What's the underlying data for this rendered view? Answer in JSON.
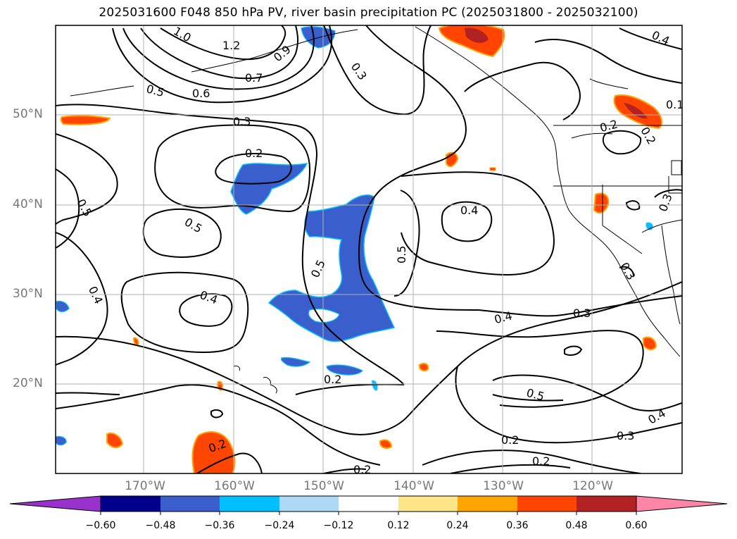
{
  "title": "2025031600 F048 850 hPa PV, river basin precipitation PC (2025031800 - 2025032100)",
  "latitude_labels": [
    "50°N",
    "40°N",
    "30°N",
    "20°N"
  ],
  "longitude_labels": [
    "170°W",
    "160°W",
    "150°W",
    "140°W",
    "130°W",
    "120°W"
  ],
  "contour_labels": [
    "1.0",
    "1.2",
    "0.9",
    "0.7",
    "0.6",
    "0.5",
    "0.3",
    "0.2",
    "0.5",
    "0.5",
    "0.4",
    "0.5",
    "0.5",
    "0.4",
    "0.4",
    "0.4",
    "0.3",
    "0.2",
    "0.5",
    "0.4",
    "0.3",
    "0.2",
    "0.2",
    "0.2",
    "0.2",
    "0.4",
    "0.1",
    "0.2",
    "0.2",
    "0.3"
  ],
  "colorbar": {
    "tick_labels": [
      "−0.60",
      "−0.48",
      "−0.36",
      "−0.24",
      "−0.12",
      "0.12",
      "0.24",
      "0.36",
      "0.48",
      "0.60"
    ],
    "colors": [
      "#9932cc",
      "#00008b",
      "#3a5fcd",
      "#00bfff",
      "#add8f6",
      "#ffffff",
      "#fde68a",
      "#ffa500",
      "#ff4500",
      "#b22222",
      "#ff85a8"
    ]
  }
}
